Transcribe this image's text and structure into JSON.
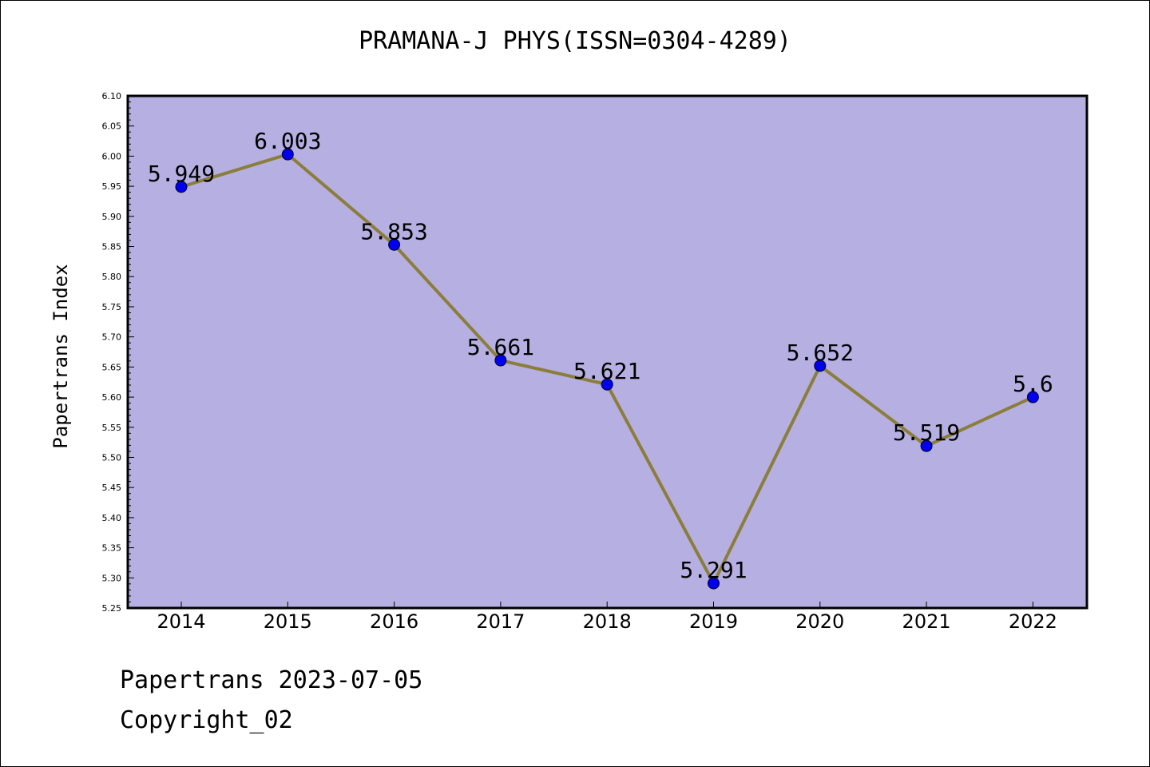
{
  "chart_data": {
    "type": "line",
    "title": "PRAMANA-J PHYS(ISSN=0304-4289)",
    "xlabel": "",
    "ylabel": "Papertrans Index",
    "x": [
      "2014",
      "2015",
      "2016",
      "2017",
      "2018",
      "2019",
      "2020",
      "2021",
      "2022"
    ],
    "series": [
      {
        "values": [
          5.949,
          6.003,
          5.853,
          5.661,
          5.621,
          5.291,
          5.652,
          5.519,
          5.6
        ],
        "labels": [
          "5.949",
          "6.003",
          "5.853",
          "5.661",
          "5.621",
          "5.291",
          "5.652",
          "5.519",
          "5.6"
        ]
      }
    ],
    "ylim": [
      5.25,
      6.1
    ],
    "yticks": [
      "5.25",
      "5.30",
      "5.35",
      "5.40",
      "5.45",
      "5.50",
      "5.55",
      "5.60",
      "5.65",
      "5.70",
      "5.75",
      "5.80",
      "5.85",
      "5.90",
      "5.95",
      "6.00",
      "6.05",
      "6.10"
    ],
    "grid": false,
    "colors": {
      "plot_background": "#b5afe2",
      "line": "#8b7d3a",
      "marker": "#0000ee"
    }
  },
  "footer": {
    "line1": "Papertrans 2023-07-05",
    "line2": "Copyright_02"
  }
}
